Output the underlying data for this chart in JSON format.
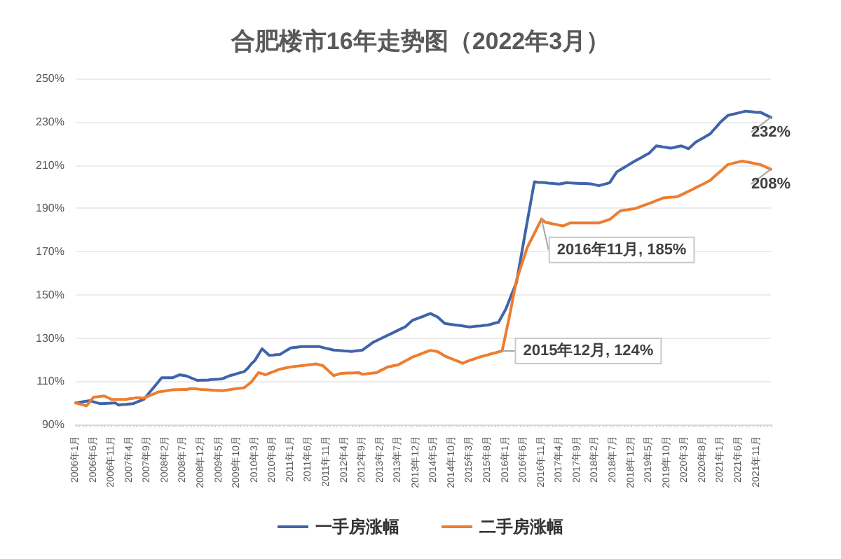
{
  "chart_data": {
    "type": "line",
    "title": "合肥楼市16年走势图（2022年3月）",
    "categories": [
      "2006年1月",
      null,
      null,
      null,
      null,
      "2006年6月",
      null,
      null,
      null,
      null,
      "2006年11月",
      null,
      null,
      null,
      null,
      "2007年4月",
      null,
      null,
      null,
      null,
      "2007年9月",
      null,
      null,
      null,
      null,
      "2008年2月",
      null,
      null,
      null,
      null,
      "2008年7月",
      null,
      null,
      null,
      null,
      "2008年12月",
      null,
      null,
      null,
      null,
      "2009年5月",
      null,
      null,
      null,
      null,
      "2009年10月",
      null,
      null,
      null,
      null,
      "2010年3月",
      null,
      null,
      null,
      null,
      "2010年8月",
      null,
      null,
      null,
      null,
      "2011年1月",
      null,
      null,
      null,
      null,
      "2011年6月",
      null,
      null,
      null,
      null,
      "2011年11月",
      null,
      null,
      null,
      null,
      "2012年4月",
      null,
      null,
      null,
      null,
      "2012年9月",
      null,
      null,
      null,
      null,
      "2013年2月",
      null,
      null,
      null,
      null,
      "2013年7月",
      null,
      null,
      null,
      null,
      "2013年12月",
      null,
      null,
      null,
      null,
      "2014年5月",
      null,
      null,
      null,
      null,
      "2014年10月",
      null,
      null,
      null,
      null,
      "2015年3月",
      null,
      null,
      null,
      null,
      "2015年8月",
      null,
      null,
      null,
      null,
      "2016年1月",
      null,
      null,
      null,
      null,
      "2016年6月",
      null,
      null,
      null,
      null,
      "2016年11月",
      null,
      null,
      null,
      null,
      "2017年4月",
      null,
      null,
      null,
      null,
      "2017年9月",
      null,
      null,
      null,
      null,
      "2018年2月",
      null,
      null,
      null,
      null,
      "2018年7月",
      null,
      null,
      null,
      null,
      "2018年12月",
      null,
      null,
      null,
      null,
      "2019年5月",
      null,
      null,
      null,
      null,
      "2019年10月",
      null,
      null,
      null,
      null,
      "2020年3月",
      null,
      null,
      null,
      null,
      "2020年8月",
      null,
      null,
      null,
      null,
      "2021年1月",
      null,
      null,
      null,
      null,
      "2021年6月",
      null,
      null,
      null,
      null,
      "2021年11月",
      null,
      null,
      null,
      null
    ],
    "series": [
      {
        "name": "一手房涨幅",
        "color": "#4064aa",
        "values": [
          100,
          100.2,
          100.5,
          100.8,
          101,
          100.5,
          100,
          99.6,
          99.7,
          99.8,
          99.9,
          100,
          99,
          99.2,
          99.3,
          99.5,
          99.6,
          100.3,
          101,
          101.6,
          103.6,
          105.6,
          107.6,
          109.6,
          111.6,
          111.6,
          111.6,
          111.6,
          112.3,
          113,
          112.7,
          112.4,
          111.7,
          111,
          110.4,
          110.5,
          110.5,
          110.6,
          110.8,
          110.9,
          111,
          111.2,
          111.9,
          112.6,
          113,
          113.5,
          114,
          114.4,
          116,
          118,
          119.6,
          122.3,
          125,
          123.5,
          122,
          122.1,
          122.3,
          122.4,
          123.4,
          124.4,
          125.4,
          125.6,
          125.8,
          126,
          126,
          126,
          126,
          126,
          126,
          125.6,
          125.2,
          124.8,
          124.4,
          124.3,
          124.2,
          124,
          123.9,
          123.8,
          124,
          124.2,
          124.4,
          125.6,
          126.8,
          128,
          128.8,
          129.6,
          130.4,
          131.2,
          132,
          132.8,
          133.6,
          134.4,
          135.2,
          136.7,
          138.2,
          138.8,
          139.4,
          140,
          140.7,
          141.3,
          140.5,
          139.7,
          138.2,
          136.7,
          136.5,
          136.2,
          136,
          135.8,
          135.6,
          135.3,
          135.1,
          135.3,
          135.5,
          135.6,
          135.8,
          136,
          136.4,
          136.9,
          137.3,
          140.3,
          143.3,
          147.4,
          151.6,
          155.7,
          165,
          174.4,
          183.8,
          193,
          202.2,
          202,
          201.9,
          201.8,
          201.6,
          201.5,
          201.3,
          201.2,
          201.5,
          201.8,
          201.7,
          201.6,
          201.5,
          201.4,
          201.4,
          201.3,
          201.2,
          200.8,
          200.4,
          200.9,
          201.3,
          201.8,
          204.3,
          206.8,
          207.8,
          208.8,
          209.8,
          210.8,
          211.8,
          212.7,
          213.6,
          214.5,
          215.4,
          217.1,
          218.8,
          218.6,
          218.3,
          218.1,
          217.8,
          218.1,
          218.5,
          218.8,
          218.2,
          217.5,
          219,
          220.5,
          221.5,
          222.4,
          223.4,
          224.3,
          226.2,
          228,
          229.9,
          231.4,
          232.9,
          233.3,
          233.7,
          234.1,
          234.5,
          234.9,
          234.7,
          234.5,
          234.3,
          234.4,
          233.6,
          232.8,
          232
        ],
        "value_labels": [
          null,
          null,
          null,
          null,
          null,
          null,
          null,
          null,
          null,
          null,
          null,
          null,
          null,
          null,
          null,
          null,
          null,
          null,
          null,
          null,
          null,
          null,
          null,
          null,
          null,
          null,
          null,
          null,
          null,
          null,
          null,
          null,
          null,
          null,
          null,
          null,
          null,
          null,
          null,
          null,
          null,
          null,
          null,
          null,
          null,
          null,
          null,
          null,
          null,
          null,
          null,
          null,
          null,
          null,
          null,
          null,
          null,
          null,
          null,
          null,
          null,
          null,
          null,
          null,
          null,
          null,
          null,
          null,
          null,
          null,
          null,
          null,
          null,
          null,
          null,
          null,
          null,
          null,
          null,
          null,
          null,
          null,
          null,
          null,
          null,
          null,
          null,
          null,
          null,
          null,
          null,
          null,
          null,
          null,
          null,
          null,
          null,
          null,
          null,
          null,
          null,
          null,
          null,
          null,
          null,
          null,
          null,
          null,
          null,
          null,
          null,
          null,
          null,
          null,
          null,
          null,
          null,
          null,
          null,
          null,
          null,
          null,
          null,
          null,
          null,
          null,
          null,
          null,
          null,
          null,
          null,
          null,
          null,
          null,
          null,
          null,
          null,
          null,
          null,
          null,
          null,
          null,
          null,
          null,
          null,
          null,
          null,
          null,
          null,
          null,
          null,
          null,
          null,
          null,
          null,
          null,
          null,
          null,
          null,
          null,
          null,
          null,
          null,
          null,
          null,
          null,
          null,
          null,
          null,
          null,
          null,
          null,
          null,
          null,
          null,
          null,
          null,
          null,
          null,
          null,
          null,
          null,
          null,
          null,
          null,
          null,
          null,
          null,
          null,
          null,
          null,
          null,
          null,
          null,
          "232%"
        ]
      },
      {
        "name": "二手房涨幅",
        "color": "#ed7d31",
        "values": [
          100,
          99.5,
          99.1,
          98.6,
          100.6,
          102.6,
          102.8,
          103,
          103.2,
          102.4,
          101.6,
          101.6,
          101.6,
          101.6,
          101.6,
          101.9,
          102.1,
          102.4,
          102.3,
          102.2,
          102.9,
          103.6,
          104.3,
          105,
          105.3,
          105.5,
          105.8,
          106,
          106.1,
          106.1,
          106.2,
          106.2,
          106.6,
          106.5,
          106.4,
          106.2,
          106.1,
          106,
          105.9,
          105.8,
          105.7,
          105.6,
          105.9,
          106.1,
          106.4,
          106.6,
          106.8,
          107,
          108.3,
          109.6,
          111.8,
          114,
          113.5,
          113,
          113.7,
          114.3,
          115,
          115.6,
          115.9,
          116.3,
          116.6,
          116.8,
          117,
          117.2,
          117.4,
          117.6,
          117.8,
          118,
          117.6,
          117.2,
          115.7,
          114.1,
          112.6,
          113.1,
          113.6,
          113.7,
          113.8,
          113.8,
          113.9,
          114,
          113.2,
          113.4,
          113.6,
          113.8,
          114,
          114.9,
          115.7,
          116.6,
          116.9,
          117.3,
          117.6,
          118.5,
          119.4,
          120.3,
          121.2,
          121.8,
          122.4,
          123.1,
          123.7,
          124.3,
          124,
          123.7,
          122.7,
          121.7,
          121,
          120.3,
          119.7,
          119,
          118.3,
          119,
          119.7,
          120.2,
          120.8,
          121.3,
          121.8,
          122.2,
          122.7,
          123.1,
          123.6,
          124,
          131.9,
          139.7,
          148.2,
          156.7,
          161.7,
          166.8,
          171.8,
          175.1,
          178.4,
          181.7,
          185,
          183.5,
          183.2,
          182.8,
          182.5,
          182.1,
          181.8,
          182.5,
          183.2,
          183.2,
          183.2,
          183.2,
          183.2,
          183.2,
          183.2,
          183.2,
          183.2,
          183.7,
          184.3,
          184.8,
          186.1,
          187.5,
          188.8,
          189.1,
          189.3,
          189.6,
          189.8,
          190.4,
          191,
          191.6,
          192.2,
          192.8,
          193.5,
          194.1,
          194.8,
          194.9,
          195.1,
          195.2,
          195.4,
          196.2,
          197,
          197.8,
          198.6,
          199.5,
          200.3,
          201.1,
          202,
          202.8,
          204.3,
          205.8,
          207.2,
          208.7,
          210.2,
          210.6,
          211,
          211.4,
          211.8,
          211.5,
          211.2,
          210.8,
          210.5,
          210.2,
          209.5,
          208.7,
          208
        ],
        "value_labels": [
          null,
          null,
          null,
          null,
          null,
          null,
          null,
          null,
          null,
          null,
          null,
          null,
          null,
          null,
          null,
          null,
          null,
          null,
          null,
          null,
          null,
          null,
          null,
          null,
          null,
          null,
          null,
          null,
          null,
          null,
          null,
          null,
          null,
          null,
          null,
          null,
          null,
          null,
          null,
          null,
          null,
          null,
          null,
          null,
          null,
          null,
          null,
          null,
          null,
          null,
          null,
          null,
          null,
          null,
          null,
          null,
          null,
          null,
          null,
          null,
          null,
          null,
          null,
          null,
          null,
          null,
          null,
          null,
          null,
          null,
          null,
          null,
          null,
          null,
          null,
          null,
          null,
          null,
          null,
          null,
          null,
          null,
          null,
          null,
          null,
          null,
          null,
          null,
          null,
          null,
          null,
          null,
          null,
          null,
          null,
          null,
          null,
          null,
          null,
          null,
          null,
          null,
          null,
          null,
          null,
          null,
          null,
          null,
          null,
          null,
          null,
          null,
          null,
          null,
          null,
          null,
          null,
          null,
          null,
          "2015年12月, 124%",
          null,
          null,
          null,
          null,
          null,
          null,
          null,
          null,
          null,
          null,
          "2016年11月, 185%",
          null,
          null,
          null,
          null,
          null,
          null,
          null,
          null,
          null,
          null,
          null,
          null,
          null,
          null,
          null,
          null,
          null,
          null,
          null,
          null,
          null,
          null,
          null,
          null,
          null,
          null,
          null,
          null,
          null,
          null,
          null,
          null,
          null,
          null,
          null,
          null,
          null,
          null,
          null,
          null,
          null,
          null,
          null,
          null,
          null,
          null,
          null,
          null,
          null,
          null,
          null,
          null,
          null,
          null,
          null,
          null,
          null,
          null,
          null,
          null,
          null,
          null,
          null,
          "208%"
        ]
      }
    ],
    "ylim": [
      90,
      250
    ],
    "yticks": [
      {
        "value": 90,
        "label": "90%"
      },
      {
        "value": 110,
        "label": "110%"
      },
      {
        "value": 130,
        "label": "130%"
      },
      {
        "value": 150,
        "label": "150%"
      },
      {
        "value": 170,
        "label": "170%"
      },
      {
        "value": 190,
        "label": "190%"
      },
      {
        "value": 210,
        "label": "210%"
      },
      {
        "value": 230,
        "label": "230%"
      },
      {
        "value": 250,
        "label": "250%"
      }
    ],
    "grid": "y",
    "legend": "bottom",
    "marker": "none",
    "line_style": "solid"
  }
}
